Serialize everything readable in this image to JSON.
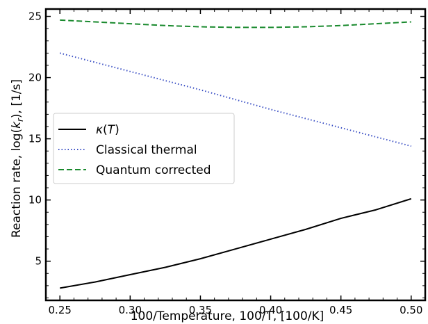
{
  "chart_data": {
    "type": "line",
    "xlabel": "100/Temperature, 100/T, [100/K]",
    "ylabel_parts": [
      "Reaction rate, log(",
      "k",
      "r",
      "), [1/s]"
    ],
    "xlim": [
      0.24,
      0.51
    ],
    "ylim": [
      1.8,
      25.6
    ],
    "x_ticks": [
      0.25,
      0.3,
      0.35,
      0.4,
      0.45,
      0.5
    ],
    "x_tick_labels": [
      "0.25",
      "0.30",
      "0.35",
      "0.40",
      "0.45",
      "0.50"
    ],
    "y_ticks": [
      5,
      10,
      15,
      20,
      25
    ],
    "y_tick_labels": [
      "5",
      "10",
      "15",
      "20",
      "25"
    ],
    "grid": false,
    "legend_position": "center-left",
    "series": [
      {
        "name": "κ(T)",
        "name_parts": [
          "κ",
          "(",
          "T",
          ")"
        ],
        "color": "#000000",
        "style": "solid",
        "x": [
          0.25,
          0.275,
          0.3,
          0.325,
          0.35,
          0.375,
          0.4,
          0.425,
          0.45,
          0.475,
          0.5
        ],
        "y": [
          2.8,
          3.3,
          3.9,
          4.5,
          5.2,
          6.0,
          6.8,
          7.6,
          8.5,
          9.2,
          10.1
        ]
      },
      {
        "name": "Classical thermal",
        "color": "#3a4fc4",
        "style": "dotted",
        "x": [
          0.25,
          0.3,
          0.35,
          0.4,
          0.45,
          0.5
        ],
        "y": [
          22.0,
          20.5,
          19.0,
          17.4,
          15.9,
          14.4
        ]
      },
      {
        "name": "Quantum corrected",
        "color": "#1a8a2e",
        "style": "dashed",
        "x": [
          0.25,
          0.275,
          0.3,
          0.325,
          0.35,
          0.375,
          0.4,
          0.425,
          0.45,
          0.475,
          0.5
        ],
        "y": [
          24.7,
          24.55,
          24.4,
          24.25,
          24.15,
          24.1,
          24.1,
          24.15,
          24.25,
          24.4,
          24.55
        ]
      }
    ]
  }
}
